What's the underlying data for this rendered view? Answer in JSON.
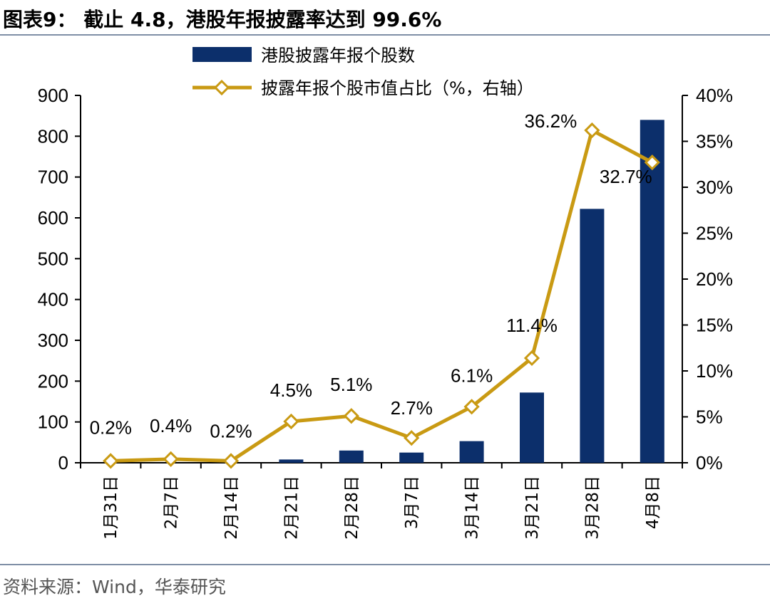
{
  "title": "图表9： 截止 4.8，港股年报披露率达到 99.6%",
  "source": "资料来源：Wind，华泰研究",
  "chart_data": {
    "type": "bar+line",
    "categories": [
      "1月31日",
      "2月7日",
      "2月14日",
      "2月21日",
      "2月28日",
      "3月7日",
      "3月14日",
      "3月21日",
      "3月28日",
      "4月8日"
    ],
    "series": [
      {
        "name": "港股披露年报个股数",
        "type": "bar",
        "axis": "left",
        "color": "#0c2f6b",
        "values": [
          0,
          0,
          0,
          8,
          30,
          25,
          53,
          172,
          622,
          840
        ]
      },
      {
        "name": "披露年报个股市值占比（%，右轴）",
        "type": "line",
        "axis": "right",
        "color": "#c99a13",
        "values": [
          0.2,
          0.4,
          0.2,
          4.5,
          5.1,
          2.7,
          6.1,
          11.4,
          36.2,
          32.7
        ],
        "labels": [
          "0.2%",
          "0.4%",
          "0.2%",
          "4.5%",
          "5.1%",
          "2.7%",
          "6.1%",
          "11.4%",
          "36.2%",
          "32.7%"
        ]
      }
    ],
    "y_left": {
      "lim": [
        0,
        900
      ],
      "ticks": [
        "0",
        "100",
        "200",
        "300",
        "400",
        "500",
        "600",
        "700",
        "800",
        "900"
      ]
    },
    "y_right": {
      "lim": [
        0,
        40
      ],
      "ticks": [
        "0%",
        "5%",
        "10%",
        "15%",
        "20%",
        "25%",
        "30%",
        "35%",
        "40%"
      ]
    },
    "legend_position": "top-center",
    "grid": false
  }
}
